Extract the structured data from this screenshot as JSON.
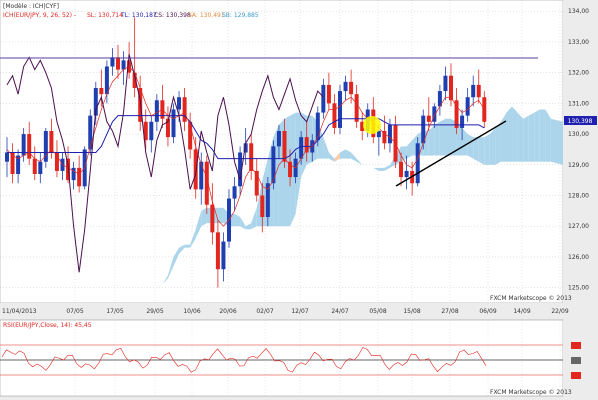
{
  "header": {
    "line1": "[Modèle : ICH|CYF]",
    "ind_prefix": "ICH(EUR/JPY, 9, 26, 52) -",
    "sl": "SL: 130,714",
    "tl": "TL: 130,187",
    "cs": "CS: 130,398",
    "sa": "SA: 130,491",
    "sb": "SB: 129,885"
  },
  "osc_header": "RSI(EUR/JPY,Close, 14): 45,45",
  "watermark": "FXCM Marketscope © 2013",
  "colors": {
    "background": "#ffffff",
    "up": "#1f3fb0",
    "down": "#e0261f",
    "tenkan": "#e0261f",
    "kijun": "#1f1fb0",
    "chikou": "#4a1050",
    "cloud_bull": "#a8d3ea",
    "cloud_bear": "#f5c9a8",
    "trendline": "#000000",
    "highlight": "#ffff00"
  },
  "chart_data": {
    "type": "candlestick",
    "instrument": "EUR/JPY",
    "ylim": [
      124.5,
      134.3
    ],
    "y_ticks": [
      "134,00",
      "133,00",
      "132,00",
      "131,00",
      "130,00",
      "129,00",
      "128,00",
      "127,00",
      "126,00",
      "125,00"
    ],
    "current_price": "130,398",
    "x_ticks": [
      "11/04/2013",
      "07/05",
      "17/05",
      "29/05",
      "10/06",
      "20/06",
      "02/07",
      "12/07",
      "24/07",
      "05/08",
      "15/08",
      "27/08",
      "06/09",
      "14/09",
      "22/09"
    ],
    "candles": [
      [
        129.1,
        129.9,
        128.6,
        129.4
      ],
      [
        129.4,
        129.7,
        128.4,
        128.7
      ],
      [
        128.7,
        129.5,
        128.4,
        129.3
      ],
      [
        129.3,
        130.2,
        129.1,
        130.0
      ],
      [
        130.0,
        130.4,
        129.0,
        129.2
      ],
      [
        129.2,
        129.6,
        128.5,
        128.7
      ],
      [
        128.7,
        129.4,
        128.4,
        129.1
      ],
      [
        129.1,
        130.2,
        128.9,
        130.1
      ],
      [
        130.1,
        130.5,
        129.2,
        129.4
      ],
      [
        129.4,
        129.8,
        128.6,
        128.8
      ],
      [
        128.8,
        129.4,
        128.5,
        129.2
      ],
      [
        129.2,
        129.6,
        128.4,
        128.5
      ],
      [
        128.5,
        129.1,
        128.2,
        128.9
      ],
      [
        128.9,
        129.3,
        128.1,
        128.3
      ],
      [
        128.3,
        129.6,
        128.2,
        129.5
      ],
      [
        129.5,
        130.8,
        129.3,
        130.6
      ],
      [
        130.6,
        131.7,
        130.3,
        131.5
      ],
      [
        131.5,
        132.1,
        130.9,
        131.3
      ],
      [
        131.3,
        132.4,
        131.0,
        132.2
      ],
      [
        132.2,
        132.8,
        131.9,
        132.5
      ],
      [
        132.5,
        132.9,
        131.8,
        132.1
      ],
      [
        132.1,
        132.7,
        131.6,
        132.4
      ],
      [
        132.4,
        133.0,
        131.8,
        132.0
      ],
      [
        132.0,
        133.8,
        131.2,
        131.5
      ],
      [
        131.5,
        131.9,
        130.1,
        130.4
      ],
      [
        130.4,
        130.8,
        129.5,
        129.8
      ],
      [
        129.8,
        130.6,
        129.4,
        130.4
      ],
      [
        130.4,
        131.3,
        130.1,
        131.1
      ],
      [
        131.1,
        131.6,
        130.2,
        130.5
      ],
      [
        130.5,
        130.9,
        129.6,
        129.9
      ],
      [
        129.9,
        131.0,
        129.7,
        130.8
      ],
      [
        130.8,
        131.4,
        130.4,
        131.2
      ],
      [
        131.2,
        131.5,
        130.1,
        130.4
      ],
      [
        130.4,
        130.7,
        129.2,
        129.5
      ],
      [
        129.5,
        129.9,
        127.9,
        128.2
      ],
      [
        128.2,
        129.4,
        127.7,
        129.1
      ],
      [
        129.1,
        129.3,
        127.4,
        127.7
      ],
      [
        127.7,
        128.4,
        126.4,
        126.8
      ],
      [
        126.8,
        127.2,
        125.0,
        125.6
      ],
      [
        125.6,
        126.8,
        125.2,
        126.5
      ],
      [
        126.5,
        128.2,
        126.3,
        127.9
      ],
      [
        127.9,
        128.6,
        127.5,
        128.3
      ],
      [
        128.3,
        129.6,
        128.0,
        129.4
      ],
      [
        129.4,
        130.2,
        129.0,
        129.7
      ],
      [
        129.7,
        130.0,
        128.5,
        128.8
      ],
      [
        128.8,
        129.2,
        127.8,
        128.0
      ],
      [
        128.0,
        128.4,
        126.8,
        127.3
      ],
      [
        127.3,
        128.6,
        127.0,
        128.4
      ],
      [
        128.4,
        129.8,
        128.2,
        129.6
      ],
      [
        129.6,
        130.3,
        129.2,
        130.1
      ],
      [
        130.1,
        130.5,
        128.9,
        129.1
      ],
      [
        129.1,
        129.5,
        128.3,
        128.6
      ],
      [
        128.6,
        129.4,
        128.4,
        129.2
      ],
      [
        129.2,
        130.1,
        129.0,
        129.9
      ],
      [
        129.9,
        130.4,
        129.1,
        129.4
      ],
      [
        129.4,
        130.0,
        129.1,
        129.8
      ],
      [
        129.8,
        130.9,
        129.6,
        130.7
      ],
      [
        130.7,
        131.8,
        130.5,
        131.6
      ],
      [
        131.6,
        132.0,
        130.8,
        131.0
      ],
      [
        131.0,
        131.3,
        130.0,
        130.2
      ],
      [
        130.2,
        131.6,
        130.0,
        131.4
      ],
      [
        131.4,
        131.9,
        131.1,
        131.7
      ],
      [
        131.7,
        132.1,
        131.0,
        131.3
      ],
      [
        131.3,
        131.6,
        130.2,
        130.4
      ],
      [
        130.4,
        130.7,
        129.8,
        130.1
      ],
      [
        130.1,
        131.0,
        129.9,
        130.8
      ],
      [
        130.8,
        131.2,
        129.7,
        129.9
      ],
      [
        129.9,
        130.3,
        129.3,
        130.1
      ],
      [
        130.1,
        130.6,
        129.5,
        129.7
      ],
      [
        129.7,
        130.5,
        129.4,
        130.3
      ],
      [
        130.3,
        130.6,
        128.9,
        129.1
      ],
      [
        129.1,
        129.4,
        128.3,
        128.6
      ],
      [
        128.6,
        129.3,
        128.2,
        128.8
      ],
      [
        128.8,
        129.1,
        128.0,
        128.4
      ],
      [
        128.4,
        129.9,
        128.3,
        129.7
      ],
      [
        129.7,
        130.8,
        129.5,
        130.6
      ],
      [
        130.6,
        131.2,
        130.1,
        130.4
      ],
      [
        130.4,
        131.0,
        130.2,
        130.9
      ],
      [
        130.9,
        131.6,
        130.6,
        131.4
      ],
      [
        131.4,
        132.2,
        131.1,
        131.9
      ],
      [
        131.9,
        132.3,
        130.9,
        131.1
      ],
      [
        131.1,
        131.5,
        130.0,
        130.2
      ],
      [
        130.2,
        130.8,
        129.8,
        130.6
      ],
      [
        130.6,
        131.5,
        130.4,
        131.2
      ],
      [
        131.2,
        131.9,
        130.9,
        131.6
      ],
      [
        131.6,
        132.1,
        131.0,
        131.2
      ],
      [
        131.2,
        131.4,
        130.2,
        130.4
      ]
    ],
    "tenkan": [
      129.5,
      129.3,
      129.2,
      129.3,
      129.4,
      129.2,
      129.1,
      129.3,
      129.5,
      129.3,
      129.0,
      128.9,
      128.8,
      128.7,
      128.9,
      129.6,
      130.2,
      130.8,
      131.3,
      131.7,
      131.9,
      132.1,
      132.2,
      132.0,
      131.5,
      131.0,
      130.6,
      130.7,
      130.8,
      130.6,
      130.5,
      130.6,
      130.7,
      130.3,
      129.6,
      129.0,
      128.6,
      127.8,
      127.2,
      127.0,
      127.2,
      127.5,
      128.0,
      128.6,
      128.9,
      128.7,
      128.3,
      128.2,
      128.5,
      129.0,
      129.2,
      129.0,
      128.9,
      129.2,
      129.5,
      129.6,
      129.9,
      130.4,
      130.8,
      130.8,
      130.9,
      131.1,
      131.2,
      131.0,
      130.7,
      130.5,
      130.4,
      130.2,
      130.0,
      129.9,
      129.7,
      129.3,
      129.0,
      128.9,
      129.2,
      129.7,
      130.2,
      130.6,
      130.9,
      131.2,
      131.2,
      130.9,
      130.7,
      130.8,
      131.0,
      131.1,
      130.8
    ],
    "kijun": [
      129.4,
      129.4,
      129.4,
      129.4,
      129.4,
      129.4,
      129.4,
      129.4,
      129.4,
      129.4,
      129.4,
      129.4,
      129.4,
      129.4,
      129.4,
      129.4,
      129.4,
      129.6,
      130.0,
      130.4,
      130.6,
      130.6,
      130.6,
      130.6,
      130.6,
      130.6,
      130.6,
      130.6,
      130.6,
      130.6,
      130.6,
      130.6,
      130.6,
      130.4,
      130.1,
      129.8,
      129.7,
      129.5,
      129.2,
      129.2,
      129.2,
      129.2,
      129.2,
      129.2,
      129.2,
      129.2,
      129.2,
      129.2,
      129.2,
      129.2,
      129.2,
      129.3,
      129.5,
      129.6,
      129.6,
      129.6,
      129.8,
      130.0,
      130.3,
      130.4,
      130.5,
      130.5,
      130.5,
      130.5,
      130.5,
      130.5,
      130.5,
      130.5,
      130.4,
      130.3,
      130.3,
      130.3,
      130.3,
      130.3,
      130.3,
      130.3,
      130.3,
      130.3,
      130.3,
      130.3,
      130.3,
      130.3,
      130.3,
      130.3,
      130.3,
      130.3,
      130.2
    ],
    "chikou": [
      131.6,
      131.9,
      131.3,
      132.2,
      132.5,
      132.1,
      132.4,
      132.0,
      131.5,
      130.4,
      129.8,
      129.0,
      127.0,
      125.5,
      126.9,
      128.8,
      130.8,
      131.2,
      130.4,
      130.1,
      129.6,
      130.7,
      132.6,
      131.9,
      131.1,
      129.4,
      128.6,
      129.8,
      130.3,
      130.4,
      131.2,
      130.6,
      129.5,
      128.2,
      128.7,
      130.1,
      129.4,
      128.8,
      130.6,
      131.2,
      130.3,
      129.1,
      128.5,
      129.7,
      130.0,
      130.8,
      131.4,
      131.9,
      131.2,
      130.8,
      131.3,
      131.8,
      131.1,
      130.6,
      130.4,
      130.9,
      131.4,
      131.2
    ],
    "senkou_a_top": [
      125.0,
      125.0,
      125.0,
      125.0,
      125.0,
      125.0,
      125.0,
      125.0,
      125.0,
      125.0,
      125.0,
      125.0,
      125.0,
      125.0,
      125.0,
      125.0,
      125.1,
      125.4,
      126.0,
      126.3,
      126.4,
      126.4,
      126.9,
      127.5,
      127.6,
      127.6,
      127.6,
      127.6,
      127.4,
      127.4,
      127.3,
      127.0,
      127.1,
      127.6,
      128.5,
      129.2,
      129.9,
      130.3,
      130.5,
      130.6,
      130.7,
      130.7,
      130.6,
      130.6,
      130.4,
      129.9,
      129.4,
      129.1,
      129.4,
      129.5,
      129.4,
      129.2,
      129.0,
      128.9,
      128.9,
      128.9,
      128.9,
      129.0,
      129.3,
      129.6,
      129.6,
      129.8,
      130.0,
      130.1,
      130.1,
      130.3,
      130.4,
      130.5,
      130.5,
      130.4,
      130.2,
      130.0,
      129.9,
      129.9,
      129.9,
      130.0,
      130.2,
      130.4,
      130.7,
      130.9,
      130.7,
      130.5,
      130.6,
      130.7,
      130.8,
      130.8,
      130.5
    ],
    "senkou_b_bottom": [
      125.0,
      125.0,
      125.0,
      125.0,
      125.0,
      125.0,
      125.0,
      125.0,
      125.0,
      125.0,
      125.0,
      125.0,
      125.0,
      125.0,
      125.0,
      125.0,
      125.1,
      125.3,
      125.7,
      126.1,
      126.3,
      126.3,
      126.6,
      127.0,
      127.1,
      127.1,
      127.1,
      127.1,
      127.0,
      127.0,
      127.0,
      126.9,
      126.9,
      127.0,
      127.0,
      127.0,
      127.0,
      127.0,
      127.0,
      127.0,
      127.4,
      128.6,
      129.0,
      129.1,
      129.2,
      129.2,
      129.2,
      129.2,
      129.2,
      129.2,
      129.2,
      129.1,
      129.0,
      128.9,
      128.9,
      128.8,
      128.8,
      128.9,
      129.0,
      129.1,
      129.2,
      129.3,
      129.3,
      129.3,
      129.3,
      129.3,
      129.3,
      129.3,
      129.3,
      129.3,
      129.3,
      129.3,
      129.2,
      129.1,
      129.0,
      129.0,
      129.0,
      129.1,
      129.1,
      129.1,
      129.1,
      129.1,
      129.1,
      129.1,
      129.1,
      129.1,
      129.1
    ]
  }
}
